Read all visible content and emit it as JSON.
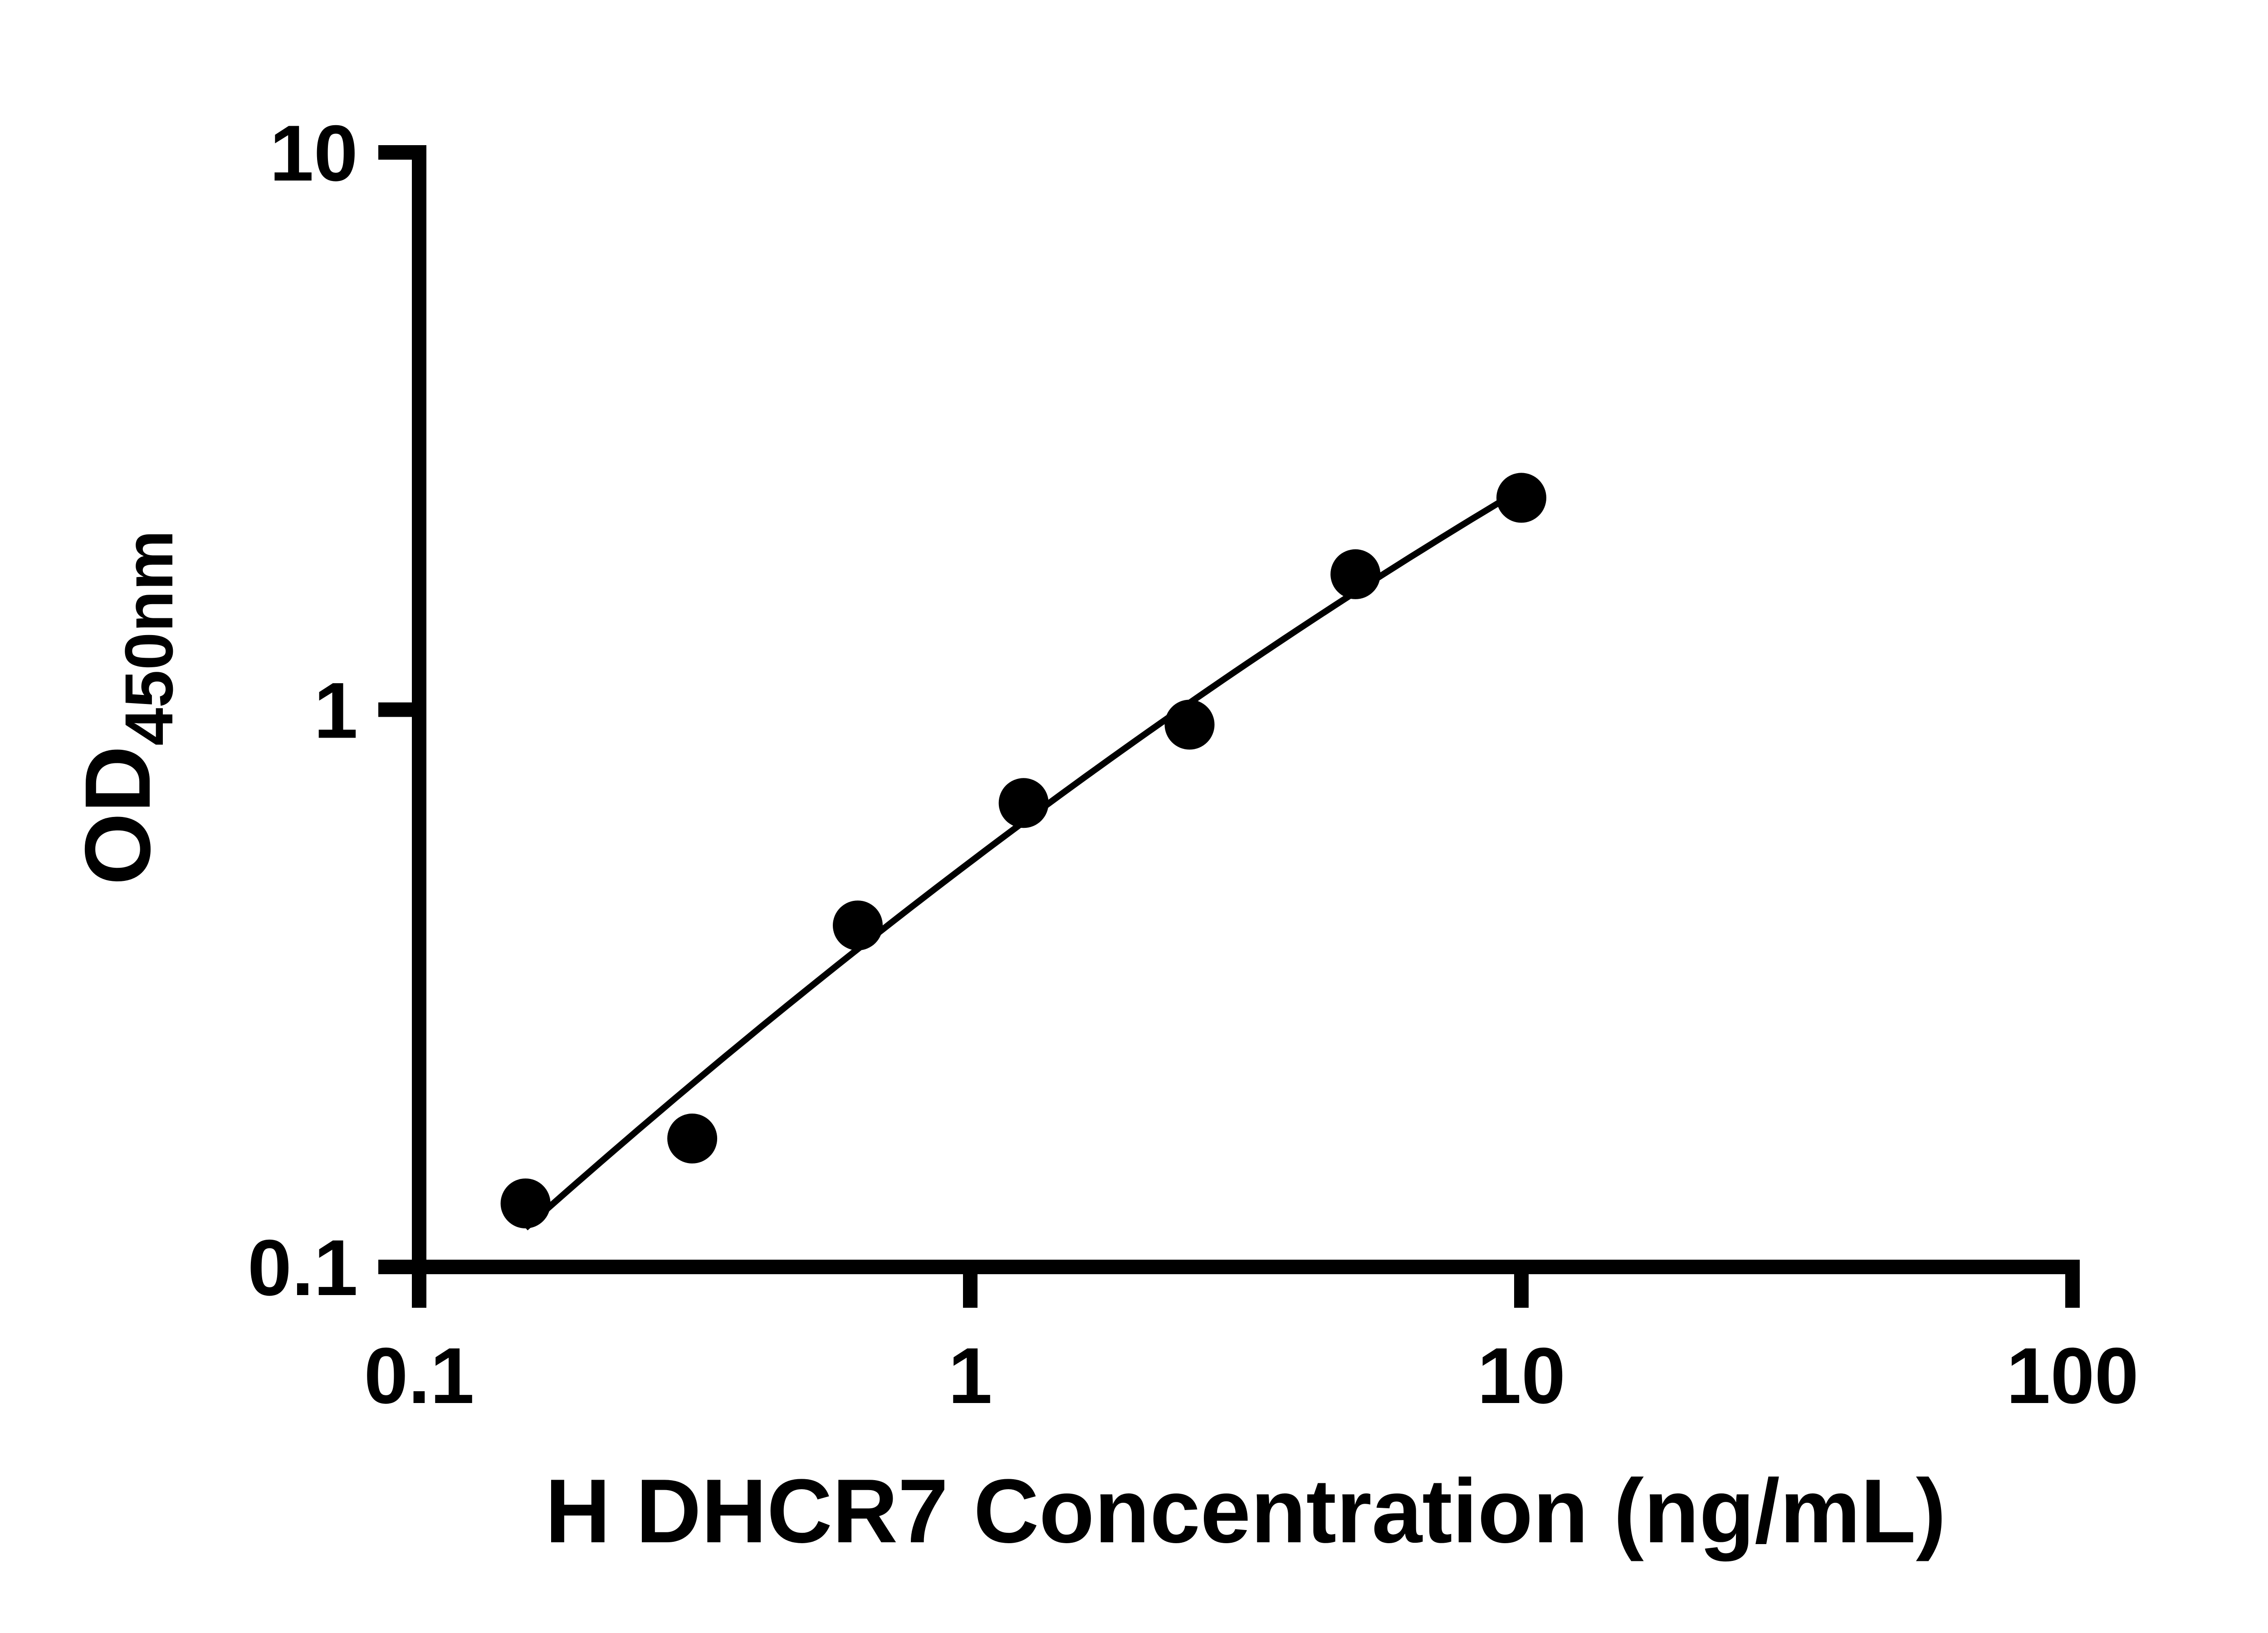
{
  "figure": {
    "background": "#ffffff",
    "foreground": "#000000"
  },
  "chart_data": {
    "type": "scatter",
    "title": "",
    "xlabel": "H DHCR7 Concentration (ng/mL)",
    "ylabel_main": "OD",
    "ylabel_sub": "450nm",
    "x_scale": "log",
    "y_scale": "log",
    "xlim": [
      0.1,
      100
    ],
    "ylim": [
      0.1,
      10
    ],
    "x_ticks": [
      {
        "value": 0.1,
        "label": "0.1"
      },
      {
        "value": 1,
        "label": "1"
      },
      {
        "value": 10,
        "label": "10"
      },
      {
        "value": 100,
        "label": "100"
      }
    ],
    "y_ticks": [
      {
        "value": 0.1,
        "label": "0.1"
      },
      {
        "value": 1,
        "label": "1"
      },
      {
        "value": 10,
        "label": "10"
      }
    ],
    "points": [
      {
        "x": 0.156,
        "y": 0.13
      },
      {
        "x": 0.313,
        "y": 0.17
      },
      {
        "x": 0.625,
        "y": 0.41
      },
      {
        "x": 1.25,
        "y": 0.68
      },
      {
        "x": 2.5,
        "y": 0.94
      },
      {
        "x": 5,
        "y": 1.75
      },
      {
        "x": 10,
        "y": 2.4
      }
    ],
    "fit_curve": "smooth regression through points, drawn from first to last point",
    "marker_color": "#000000",
    "line_color": "#000000",
    "grid": false,
    "legend": null
  }
}
